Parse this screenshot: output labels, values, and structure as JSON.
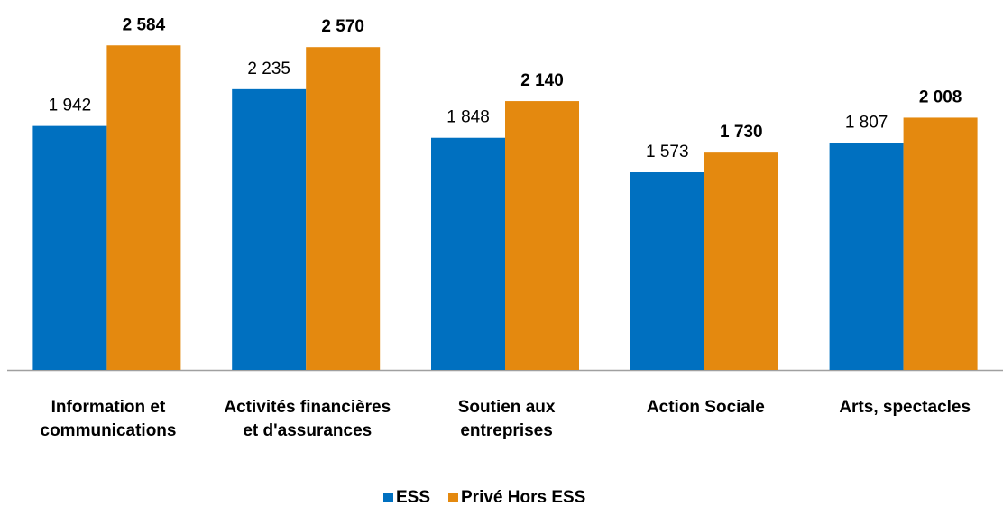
{
  "chart_data": {
    "type": "bar",
    "categories": [
      "Information et\ncommunications",
      "Activités financières\net d'assurances",
      "Soutien aux\nentreprises",
      "Action Sociale",
      "Arts, spectacles"
    ],
    "series": [
      {
        "name": "ESS",
        "color": "#0070c0",
        "values": [
          1942,
          2235,
          1848,
          1573,
          1807
        ],
        "value_labels": [
          "1 942",
          "2 235",
          "1 848",
          "1 573",
          "1 807"
        ]
      },
      {
        "name": "Privé Hors ESS",
        "color": "#e4890f",
        "values": [
          2584,
          2570,
          2140,
          1730,
          2008
        ],
        "value_labels": [
          "2 584",
          "2 570",
          "2 140",
          "1 730",
          "2 008"
        ]
      }
    ],
    "ylim": [
      0,
      2945
    ],
    "legend": "bottom"
  }
}
